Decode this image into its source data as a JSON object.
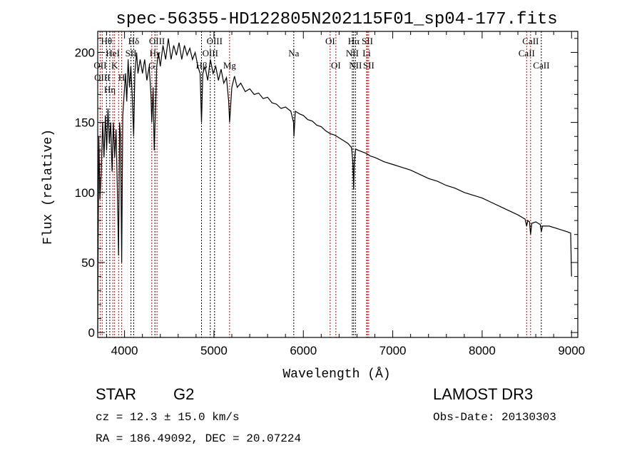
{
  "chart_data": {
    "type": "line",
    "title": "spec-56355-HD122805N202115F01_sp04-177.fits",
    "xlabel": "Wavelength (Å)",
    "ylabel": "Flux (relative)",
    "xlim": [
      3700,
      9070
    ],
    "ylim": [
      -3.5,
      215
    ],
    "xticks": [
      4000,
      5000,
      6000,
      7000,
      8000,
      9000
    ],
    "yticks": [
      0,
      50,
      100,
      150,
      200
    ],
    "grid": false,
    "series": [
      {
        "name": "spectrum",
        "color": "#000000",
        "points": [
          [
            3700,
            0
          ],
          [
            3705,
            60
          ],
          [
            3712,
            140
          ],
          [
            3725,
            95
          ],
          [
            3740,
            115
          ],
          [
            3755,
            150
          ],
          [
            3770,
            125
          ],
          [
            3785,
            155
          ],
          [
            3800,
            130
          ],
          [
            3815,
            160
          ],
          [
            3830,
            135
          ],
          [
            3845,
            150
          ],
          [
            3860,
            115
          ],
          [
            3875,
            150
          ],
          [
            3890,
            125
          ],
          [
            3905,
            145
          ],
          [
            3920,
            100
          ],
          [
            3933,
            55
          ],
          [
            3945,
            150
          ],
          [
            3955,
            140
          ],
          [
            3968,
            50
          ],
          [
            3980,
            155
          ],
          [
            3995,
            170
          ],
          [
            4010,
            185
          ],
          [
            4025,
            165
          ],
          [
            4040,
            195
          ],
          [
            4055,
            175
          ],
          [
            4070,
            190
          ],
          [
            4085,
            170
          ],
          [
            4102,
            140
          ],
          [
            4115,
            185
          ],
          [
            4135,
            200
          ],
          [
            4150,
            185
          ],
          [
            4175,
            195
          ],
          [
            4200,
            185
          ],
          [
            4225,
            195
          ],
          [
            4250,
            180
          ],
          [
            4275,
            190
          ],
          [
            4295,
            170
          ],
          [
            4305,
            150
          ],
          [
            4320,
            175
          ],
          [
            4332,
            130
          ],
          [
            4345,
            155
          ],
          [
            4360,
            190
          ],
          [
            4380,
            200
          ],
          [
            4400,
            190
          ],
          [
            4430,
            205
          ],
          [
            4460,
            195
          ],
          [
            4490,
            210
          ],
          [
            4520,
            195
          ],
          [
            4550,
            205
          ],
          [
            4580,
            198
          ],
          [
            4610,
            207
          ],
          [
            4640,
            195
          ],
          [
            4670,
            205
          ],
          [
            4700,
            198
          ],
          [
            4730,
            203
          ],
          [
            4760,
            195
          ],
          [
            4790,
            200
          ],
          [
            4820,
            190
          ],
          [
            4845,
            185
          ],
          [
            4861,
            150
          ],
          [
            4875,
            185
          ],
          [
            4900,
            190
          ],
          [
            4930,
            180
          ],
          [
            4960,
            195
          ],
          [
            4990,
            185
          ],
          [
            5020,
            190
          ],
          [
            5050,
            180
          ],
          [
            5080,
            188
          ],
          [
            5110,
            178
          ],
          [
            5140,
            182
          ],
          [
            5165,
            165
          ],
          [
            5175,
            150
          ],
          [
            5185,
            160
          ],
          [
            5200,
            175
          ],
          [
            5230,
            183
          ],
          [
            5260,
            175
          ],
          [
            5300,
            178
          ],
          [
            5350,
            172
          ],
          [
            5400,
            174
          ],
          [
            5450,
            170
          ],
          [
            5500,
            171
          ],
          [
            5550,
            167
          ],
          [
            5600,
            168
          ],
          [
            5650,
            164
          ],
          [
            5700,
            163
          ],
          [
            5750,
            160
          ],
          [
            5800,
            161
          ],
          [
            5860,
            158
          ],
          [
            5890,
            150
          ],
          [
            5895,
            140
          ],
          [
            5910,
            158
          ],
          [
            5960,
            156
          ],
          [
            6000,
            155
          ],
          [
            6050,
            152
          ],
          [
            6100,
            151
          ],
          [
            6150,
            148
          ],
          [
            6200,
            147
          ],
          [
            6250,
            144
          ],
          [
            6300,
            142
          ],
          [
            6350,
            141
          ],
          [
            6400,
            139
          ],
          [
            6450,
            137
          ],
          [
            6500,
            135
          ],
          [
            6540,
            132
          ],
          [
            6555,
            120
          ],
          [
            6563,
            102
          ],
          [
            6570,
            122
          ],
          [
            6585,
            131
          ],
          [
            6620,
            130
          ],
          [
            6660,
            129
          ],
          [
            6700,
            128
          ],
          [
            6750,
            126
          ],
          [
            6800,
            125
          ],
          [
            6900,
            122
          ],
          [
            7000,
            120
          ],
          [
            7100,
            118
          ],
          [
            7200,
            116
          ],
          [
            7300,
            113
          ],
          [
            7400,
            110
          ],
          [
            7500,
            108
          ],
          [
            7600,
            105
          ],
          [
            7700,
            103
          ],
          [
            7800,
            100
          ],
          [
            7900,
            98
          ],
          [
            8000,
            96
          ],
          [
            8100,
            93
          ],
          [
            8200,
            90
          ],
          [
            8300,
            87
          ],
          [
            8400,
            84
          ],
          [
            8480,
            81
          ],
          [
            8498,
            76
          ],
          [
            8510,
            80
          ],
          [
            8530,
            79
          ],
          [
            8542,
            70
          ],
          [
            8555,
            78
          ],
          [
            8600,
            79
          ],
          [
            8650,
            77
          ],
          [
            8662,
            72
          ],
          [
            8675,
            76
          ],
          [
            8750,
            76
          ],
          [
            8850,
            74
          ],
          [
            8950,
            72
          ],
          [
            8990,
            71
          ],
          [
            9000,
            40
          ]
        ]
      }
    ],
    "lines": [
      {
        "wave": 3727,
        "label": "OII",
        "row": 2,
        "color": "#cc0000"
      },
      {
        "wave": 3750,
        "label": "OIII",
        "row": 3,
        "color": "#cc0000"
      },
      {
        "wave": 3798,
        "label": "Hθ",
        "row": 1,
        "color": "#000000"
      },
      {
        "wave": 3835,
        "label": "Hη",
        "row": 3,
        "color": "#000000"
      },
      {
        "wave": 3869,
        "label": "HeI",
        "row": 2,
        "color": "#cc0000"
      },
      {
        "wave": 3889,
        "label": "K",
        "row": 1,
        "color": "#cc0000"
      },
      {
        "wave": 3934,
        "label": "",
        "row": 1,
        "color": "#cc0000"
      },
      {
        "wave": 3968,
        "label": "H",
        "row": 3,
        "color": "#cc0000"
      },
      {
        "wave": 4072,
        "label": "SII",
        "row": 2,
        "color": "#000000"
      },
      {
        "wave": 4102,
        "label": "Hδ",
        "row": 1,
        "color": "#000000"
      },
      {
        "wave": 4305,
        "label": "G",
        "row": 3,
        "color": "#cc0000"
      },
      {
        "wave": 4340,
        "label": "Hγ",
        "row": 2,
        "color": "#000000"
      },
      {
        "wave": 4363,
        "label": "OIII",
        "row": 1,
        "color": "#cc0000"
      },
      {
        "wave": 4861,
        "label": "Hβ",
        "row": 3,
        "color": "#000000"
      },
      {
        "wave": 4959,
        "label": "OIII",
        "row": 2,
        "color": "#000000"
      },
      {
        "wave": 5007,
        "label": "OIII",
        "row": 1,
        "color": "#000000"
      },
      {
        "wave": 5175,
        "label": "Mg",
        "row": 3,
        "color": "#cc0000"
      },
      {
        "wave": 5893,
        "label": "Na",
        "row": 2,
        "color": "#000000"
      },
      {
        "wave": 6300,
        "label": "OI",
        "row": 1,
        "color": "#cc0000"
      },
      {
        "wave": 6364,
        "label": "OI",
        "row": 3,
        "color": "#cc0000"
      },
      {
        "wave": 6548,
        "label": "NII",
        "row": 2,
        "color": "#000000"
      },
      {
        "wave": 6563,
        "label": "Hα",
        "row": 1,
        "color": "#000000"
      },
      {
        "wave": 6583,
        "label": "NII",
        "row": 3,
        "color": "#000000"
      },
      {
        "wave": 6708,
        "label": "Li",
        "row": 2,
        "color": "#cc0000"
      },
      {
        "wave": 6716,
        "label": "SII",
        "row": 1,
        "color": "#cc0000"
      },
      {
        "wave": 6731,
        "label": "SII",
        "row": 3,
        "color": "#cc0000"
      },
      {
        "wave": 8498,
        "label": "CaII",
        "row": 2,
        "color": "#cc0000"
      },
      {
        "wave": 8542,
        "label": "CaII",
        "row": 1,
        "color": "#cc0000"
      },
      {
        "wave": 8662,
        "label": "CaII",
        "row": 3,
        "color": "#000000"
      }
    ]
  },
  "info": {
    "object_class": "STAR",
    "subclass": "G2",
    "survey": "LAMOST DR3",
    "cz": "cz = 12.3 ± 15.0 km/s",
    "obs_date": "Obs-Date: 20130303",
    "coords": "RA = 186.49092, DEC =  20.07224"
  }
}
